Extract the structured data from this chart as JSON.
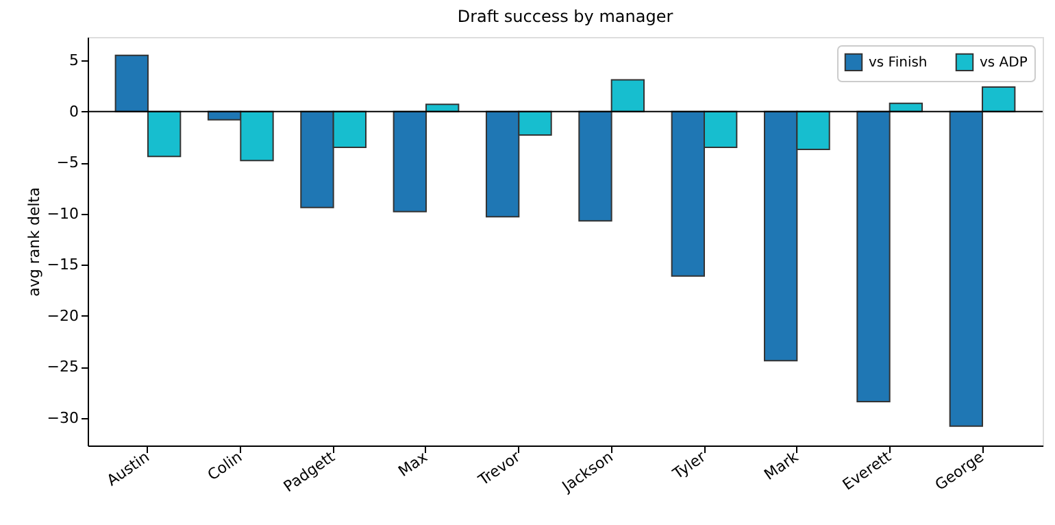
{
  "chart_data": {
    "type": "bar",
    "title": "Draft success by manager",
    "ylabel": "avg rank delta",
    "categories": [
      "Austin",
      "Colin",
      "Padgett",
      "Max",
      "Trevor",
      "Jackson",
      "Tyler",
      "Mark",
      "Everett",
      "George"
    ],
    "series": [
      {
        "name": "vs Finish",
        "color": "#1f77b4",
        "values": [
          5.5,
          -0.8,
          -9.4,
          -9.8,
          -10.3,
          -10.7,
          -16.1,
          -24.4,
          -28.4,
          -30.8
        ]
      },
      {
        "name": "vs ADP",
        "color": "#17becf",
        "values": [
          -4.4,
          -4.8,
          -3.5,
          0.7,
          -2.3,
          3.1,
          -3.5,
          -3.7,
          0.8,
          2.4
        ]
      }
    ],
    "ylim": [
      -32.7,
      7.3
    ],
    "yticks": [
      -30,
      -25,
      -20,
      -15,
      -10,
      -5,
      0,
      5
    ],
    "ref_lines": [
      {
        "axis": "y",
        "value": 0,
        "color": "#000000"
      }
    ],
    "grid": false,
    "legend": "top right"
  }
}
